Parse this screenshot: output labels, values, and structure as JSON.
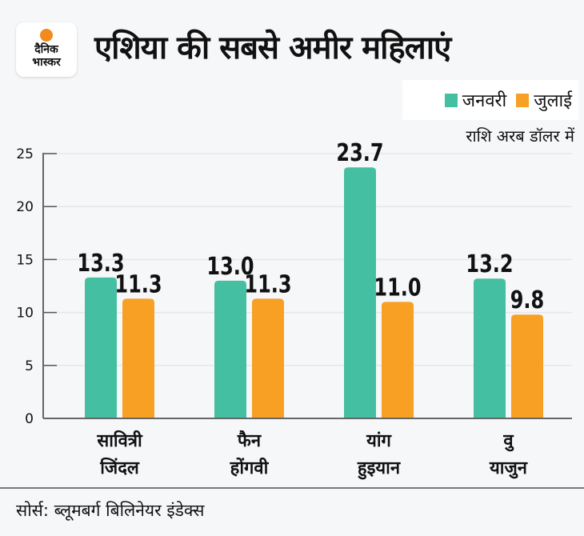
{
  "brand": {
    "logo_line1": "दैनिक",
    "logo_line2": "भास्कर"
  },
  "title": "एशिया की सबसे अमीर महिलाएं",
  "unit_note": "राशि अरब डॉलर में",
  "source": "सोर्स: ब्लूमबर्ग बिलिनेयर इंडेक्स",
  "colors": {
    "january": "#45bfa2",
    "july": "#f7a024"
  },
  "chart_data": {
    "type": "bar",
    "title": "एशिया की सबसे अमीर महिलाएं",
    "ylabel": "राशि अरब डॉलर में",
    "ylim": [
      0,
      25
    ],
    "yticks": [
      "0",
      "5",
      "10",
      "15",
      "20",
      "25"
    ],
    "grid": true,
    "legend": "top-right",
    "categories": [
      [
        "सावित्री",
        "जिंदल"
      ],
      [
        "फैन",
        "होंगवी"
      ],
      [
        "यांग",
        "हुइयान"
      ],
      [
        "वु",
        "याजुन"
      ]
    ],
    "series": [
      {
        "name": "जनवरी",
        "color": "#45bfa2",
        "values": [
          13.3,
          13.0,
          23.7,
          13.2
        ],
        "labels": [
          "13.3",
          "13.0",
          "23.7",
          "13.2"
        ]
      },
      {
        "name": "जुलाई",
        "color": "#f7a024",
        "values": [
          11.3,
          11.3,
          11.0,
          9.8
        ],
        "labels": [
          "11.3",
          "11.3",
          "11.0",
          "9.8"
        ]
      }
    ]
  }
}
